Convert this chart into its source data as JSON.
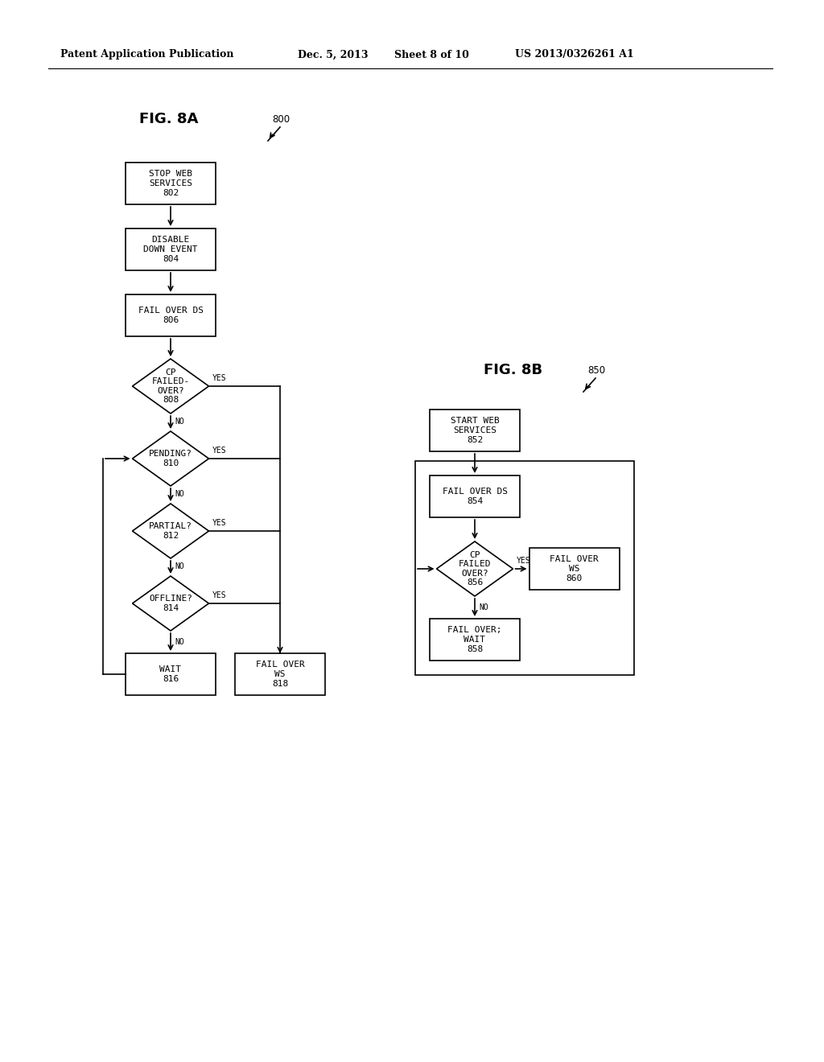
{
  "title_header": "Patent Application Publication",
  "date_header": "Dec. 5, 2013",
  "sheet_header": "Sheet 8 of 10",
  "patent_header": "US 2013/0326261 A1",
  "fig8a_label": "FIG. 8A",
  "fig8b_label": "FIG. 8B",
  "ref800": "800",
  "ref850": "850",
  "bg_color": "#ffffff",
  "box_color": "#000000",
  "text_color": "#000000",
  "font_size": 8,
  "header_font_size": 9
}
